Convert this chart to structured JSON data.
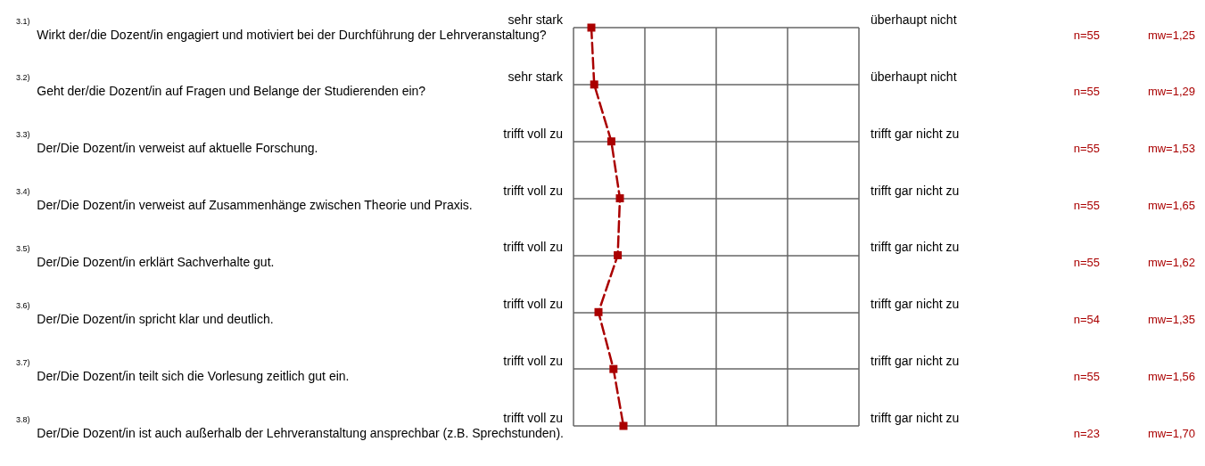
{
  "chart_data": {
    "type": "line",
    "orientation": "horizontal",
    "categories": [
      "$^{3.1)}$ Wirkt der/die Dozent/in engagiert und motiviert bei der Durchführung der Lehrveranstaltung?",
      "$^{3.2)}$ Geht der/die Dozent/in auf Fragen und Belange der Studierenden ein?",
      "$^{3.3)}$ Der/Die Dozent/in verweist auf aktuelle Forschung.",
      "$^{3.4)}$ Der/Die Dozent/in verweist auf Zusammenhänge zwischen Theorie und Praxis.",
      "$^{3.5)}$ Der/Die Dozent/in erklärt Sachverhalte gut.",
      "$^{3.6)}$ Der/Die Dozent/in spricht klar und deutlich.",
      "$^{3.7)}$ Der/Die Dozent/in teilt sich die Vorlesung zeitlich gut ein.",
      "$^{3.8)}$ Der/Die Dozent/in ist auch außerhalb der Lehrveranstaltung ansprechbar (z.B. Sprechstunden)."
    ],
    "values": [
      1.25,
      1.29,
      1.53,
      1.65,
      1.62,
      1.35,
      1.56,
      1.7
    ],
    "value_labels": [
      "mw=1,25",
      "mw=1,29",
      "mw=1,53",
      "mw=1,65",
      "mw=1,62",
      "mw=1,35",
      "mw=1,56",
      "mw=1,70"
    ],
    "color": "#aa0000",
    "marker": "square",
    "line_style": "dashed",
    "xlim": [
      1,
      5
    ],
    "xticks": [
      {
        "value": 1,
        "label": null
      },
      {
        "value": 2,
        "label": null
      },
      {
        "value": 3,
        "label": null
      },
      {
        "value": 4,
        "label": null
      },
      {
        "value": 5,
        "label": null
      }
    ],
    "grid": true,
    "tick_labels": "y",
    "annotations": [
      "sehr stark",
      "überhaupt nicht",
      "n=55",
      "sehr stark",
      "überhaupt nicht",
      "n=55",
      "trifft voll zu",
      "trifft gar nicht zu",
      "n=55",
      "trifft voll zu",
      "trifft gar nicht zu",
      "n=55",
      "trifft voll zu",
      "trifft gar nicht zu",
      "n=55",
      "trifft voll zu",
      "trifft gar nicht zu",
      "n=54",
      "trifft voll zu",
      "trifft gar nicht zu",
      "n=55",
      "trifft voll zu",
      "trifft gar nicht zu",
      "n=23"
    ]
  }
}
